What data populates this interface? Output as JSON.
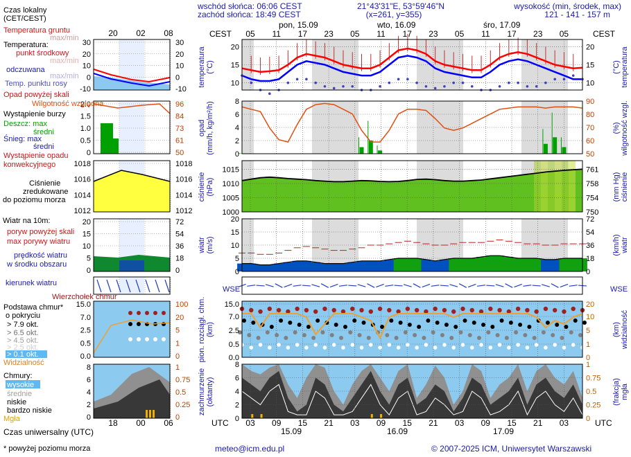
{
  "header": {
    "sunrise": "wschód słońca: 06:06 CEST",
    "sunset": "zachód słońca: 18:49 CEST",
    "coords": "21°43'31\"E, 53°59'46\"N",
    "grid": "(x=261, y=355)",
    "height_title": "wysokość (min, środek, max)",
    "height_values": "121 - 141 - 157 m"
  },
  "time": {
    "cest_label": "CEST",
    "utc_label": "UTC",
    "days": [
      "pon, 15.09",
      "wto, 16.09",
      "śro, 17.09"
    ],
    "cest_ticks": [
      "05",
      "11",
      "17",
      "23",
      "05",
      "11",
      "17",
      "23",
      "05",
      "11",
      "17",
      "23",
      "05"
    ],
    "utc_ticks": [
      "03",
      "09",
      "15",
      "21",
      "03",
      "09",
      "15",
      "21",
      "03",
      "09",
      "15",
      "21",
      "03"
    ],
    "utc_dates": [
      "15.09",
      "16.09",
      "17.09"
    ]
  },
  "legend": {
    "local_time": "Czas lokalny",
    "local_time_sub": "(CET/CEST)",
    "local_ticks": [
      "20",
      "02",
      "08"
    ],
    "soil_temp": "Temperatura gruntu",
    "soil_maxmin": "max/min",
    "temp": "Temperatura:",
    "midpoint": "punkt środkowy",
    "maxmin": "max/min",
    "perceived": "odczuwana",
    "perceived_maxmin": "max/min",
    "dewpoint": "Temp. punktu rosy",
    "precip_over": "Opad powyżej skali",
    "humidity": "Wilgotność względna",
    "storm": "Wystąpienie burzy",
    "rain_max": "Deszcz: max",
    "rain_mid": "średni",
    "snow_max": "Śnieg:   max",
    "snow_mid": "średni",
    "convective": "Wystąpienie opadu",
    "convective2": "konwekcyjnego",
    "pressure1": "Ciśnienie",
    "pressure2": "zredukowane",
    "pressure3": "do poziomu morza",
    "wind_at": "Wiatr na 10m:",
    "gust_over": "poryw powyżej skali",
    "gust_max": "max porywy wiatru",
    "wind_speed": "prędkość wiatru",
    "wind_area": "w środku obszaru",
    "wind_dir": "kierunek wiatru",
    "cloud_top": "Wierzchołek chmur",
    "cloud_base": "Podstawa chmur*",
    "cover_by": "o pokryciu",
    "okt79": "> 7.9 okt.",
    "okt65": "> 6.5 okt.",
    "okt45": "> 4.5 okt.",
    "okt25": "> 2.5 okt.",
    "okt01": "> 0.1 okt.",
    "visibility": "Widzialność",
    "clouds": "Chmury:",
    "high": "wysokie",
    "medium": "średnie",
    "low": "niskie",
    "very_low": "bardzo niskie",
    "fog": "Mgła",
    "utc_time": "Czas uniwersalny (UTC)",
    "utc_ticks": [
      "18",
      "00",
      "06"
    ],
    "footnote": "* powyżej poziomu morza"
  },
  "axes": {
    "temp": {
      "left": "temperatura",
      "left_unit": "(°C)",
      "right": "temperatura",
      "right_unit": "(°C)",
      "ticks": [
        "20",
        "15",
        "10"
      ]
    },
    "precip": {
      "left": "opad",
      "left_unit": "(mm/h, kg/m²/h)",
      "right": "wilgotność wzgl.",
      "right_unit": "(%)",
      "ticks": [
        "8",
        "6",
        "4",
        "2",
        "0"
      ],
      "rticks": [
        "90",
        "80",
        "70",
        "60",
        "50"
      ]
    },
    "pressure": {
      "left": "ciśnienie",
      "left_unit": "(hPa)",
      "right": "ciśnienie",
      "right_unit": "(mm Hg)",
      "ticks": [
        "1015",
        "1010",
        "1005",
        "1000"
      ],
      "rticks": [
        "761",
        "758",
        "754",
        "750"
      ]
    },
    "wind": {
      "left": "wiatr",
      "left_unit": "(m/s)",
      "right": "wiatr",
      "right_unit": "(km/h)",
      "ticks": [
        "20",
        "15",
        "10",
        "5",
        "0"
      ],
      "rticks": [
        "72",
        "54",
        "36",
        "18",
        "0"
      ]
    },
    "cloud": {
      "left": "pion. rozciągł. chm.",
      "left_unit": "(km)",
      "right": "widzialność",
      "right_unit": "(km)",
      "ticks": [
        "15.0",
        "7.0",
        "2.5",
        "0.5",
        "0.0"
      ],
      "rticks": [
        "20",
        "10",
        "5",
        "1",
        "0"
      ]
    },
    "cover": {
      "left": "zachmurzenie",
      "left_unit": "(oktanty)",
      "right": "mgła",
      "right_unit": "(frakcja)",
      "ticks": [
        "8",
        "6",
        "4",
        "2",
        "0"
      ],
      "rticks": [
        "1",
        "0.75",
        "0.5",
        "0.25",
        "0"
      ]
    }
  },
  "legend_ticks": {
    "temp_l": [
      "30",
      "20",
      "10",
      "0",
      "-10"
    ],
    "temp_r": [
      "30",
      "20",
      "10",
      "0",
      "-10"
    ],
    "precip_l": [
      "2.0",
      "1.5",
      "1.0",
      "0.5",
      "0"
    ],
    "precip_r": [
      "96",
      "84",
      "73",
      "61",
      "50"
    ],
    "press_l": [
      "1018",
      "1016",
      "1014",
      "1012"
    ],
    "press_r": [
      "1018",
      "1016",
      "1014",
      "1012"
    ],
    "wind_l": [
      "20",
      "15",
      "10",
      "5",
      "0"
    ],
    "wind_r": [
      "72",
      "54",
      "36",
      "18",
      "0"
    ],
    "cloud_l": [
      "15.0",
      "7.0",
      "2.5",
      "0.5",
      "0.0"
    ],
    "cloud_r": [
      "100",
      "20",
      "5",
      "1",
      "0"
    ],
    "cover_l": [
      "8",
      "6",
      "4",
      "2",
      "0"
    ],
    "cover_r": [
      "1",
      "0.75",
      "0.5",
      "0.25",
      "0"
    ]
  },
  "footer": {
    "email": "meteo@icm.edu.pl",
    "copyright": "© 2007-2025 ICM, Uniwersytet Warszawski"
  },
  "colors": {
    "night": "#dcdcdc",
    "temp_red": "#ff0000",
    "temp_blue": "#0000ff",
    "dew": "#4040c0",
    "humidity": "#e05010",
    "rain": "#00a000",
    "pressure_fill": "#ffff40",
    "wind_green": "#10a010",
    "wind_blue": "#0050c0",
    "cloud_bg": "#8ccaf0",
    "visibility": "#f0a030"
  },
  "chart_data": {
    "type": "line",
    "title": "",
    "series": [
      {
        "name": "temperatura",
        "unit": "°C",
        "values": [
          14,
          13.5,
          13,
          13.2,
          13.5,
          15,
          17,
          18,
          17.5,
          17,
          16,
          15,
          14.5,
          14,
          14,
          15,
          17,
          19,
          19.5,
          19,
          18,
          16,
          15,
          14.5,
          14,
          13.5,
          13.5,
          15,
          17,
          18,
          18.5,
          18,
          17,
          16,
          15,
          14.5,
          14,
          14.2
        ]
      },
      {
        "name": "temperatura odczuwana",
        "unit": "°C",
        "values": [
          12,
          11,
          10.5,
          10.5,
          11,
          13,
          15,
          16,
          15.5,
          15,
          14,
          13,
          12.5,
          12,
          12,
          13,
          15,
          17,
          17.5,
          17,
          16,
          14,
          13,
          12.5,
          12,
          11.5,
          11.5,
          13,
          15,
          16,
          16.5,
          16,
          15,
          14,
          13,
          12,
          11,
          11
        ]
      },
      {
        "name": "temp. punktu rosy",
        "unit": "°C",
        "values": [
          12,
          10,
          8,
          7,
          8,
          10,
          11,
          11,
          10,
          9,
          8.5,
          9,
          9,
          8,
          8,
          9,
          10,
          11,
          11,
          10,
          9,
          8.5,
          9,
          10,
          10,
          9,
          8,
          8,
          9,
          10,
          10,
          9,
          9,
          10,
          11,
          11,
          12,
          11
        ]
      },
      {
        "name": "wilgotność względna",
        "unit": "%",
        "values": [
          90,
          88,
          86,
          72,
          62,
          60,
          75,
          88,
          92,
          93,
          92,
          88,
          84,
          70,
          60,
          60,
          70,
          84,
          88,
          88,
          87,
          80,
          72,
          70,
          72,
          76,
          80,
          84,
          88,
          89,
          90,
          90,
          90,
          89,
          90,
          90,
          90,
          89
        ]
      },
      {
        "name": "ciśnienie",
        "unit": "hPa",
        "values": [
          1011,
          1011.5,
          1012,
          1012.2,
          1012,
          1011.7,
          1011.5,
          1011.3,
          1011,
          1010.8,
          1010.6,
          1010.6,
          1010.8,
          1011,
          1010.9,
          1010.7,
          1010.6,
          1010.7,
          1011,
          1011.4,
          1011.5,
          1011.3,
          1011,
          1010.8,
          1010.8,
          1011,
          1011.2,
          1011.6,
          1012,
          1012.4,
          1012.8,
          1013.2,
          1013.6,
          1014,
          1014.3,
          1014.6,
          1014.8,
          1015
        ]
      },
      {
        "name": "prędkość wiatru",
        "unit": "m/s",
        "values": [
          3,
          3,
          2.5,
          2.5,
          3,
          3.5,
          4,
          4,
          3.5,
          3,
          3,
          3,
          3.5,
          4,
          4,
          4,
          4.5,
          5,
          5,
          5,
          4.5,
          4,
          4.5,
          5,
          5,
          5,
          5.5,
          6,
          6,
          5.5,
          5,
          5,
          5,
          4.5,
          4.5,
          5,
          5,
          5
        ]
      },
      {
        "name": "max porywy wiatru",
        "unit": "m/s",
        "values": [
          7,
          7,
          6.5,
          6.5,
          7,
          8,
          9,
          9.5,
          9,
          8.5,
          8,
          8,
          8.5,
          9,
          10,
          10,
          10.5,
          11,
          11.5,
          11,
          10.5,
          10,
          10,
          10.5,
          11,
          11,
          11,
          11.5,
          12,
          11.5,
          11,
          10.5,
          10.5,
          10,
          10,
          10.5,
          10.5,
          10.5
        ]
      },
      {
        "name": "widzialność",
        "unit": "km",
        "values": [
          10,
          10,
          6,
          10,
          10,
          10,
          10,
          9,
          4,
          7,
          10,
          10,
          10,
          9,
          8,
          3,
          9,
          10,
          10,
          10,
          10,
          10,
          10,
          9,
          10,
          10,
          10,
          10,
          10,
          10,
          10,
          10,
          9,
          6,
          8,
          7,
          9,
          10
        ]
      },
      {
        "name": "opad",
        "unit": "mm/h",
        "values": [
          0.05,
          0,
          0,
          0,
          0,
          0,
          0,
          0,
          0,
          0,
          0,
          0,
          0,
          1,
          2,
          0.5,
          0,
          0,
          0,
          0,
          0,
          0,
          0,
          0,
          0,
          0,
          0,
          0,
          0,
          0,
          0,
          0,
          0,
          1.5,
          2.5,
          1,
          0,
          0
        ]
      }
    ]
  }
}
